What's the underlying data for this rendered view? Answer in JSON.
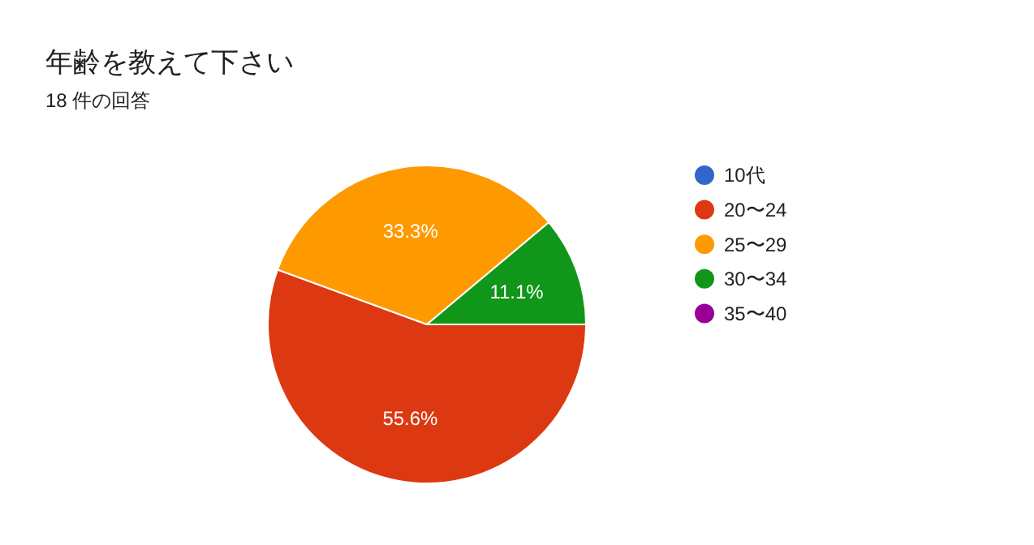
{
  "chart_data": {
    "type": "pie",
    "title": "年齢を教えて下さい",
    "subtitle": "18 件の回答",
    "categories": [
      "10代",
      "20〜24",
      "25〜29",
      "30〜34",
      "35〜40"
    ],
    "values": [
      0,
      55.6,
      33.3,
      11.1,
      0
    ],
    "colors": [
      "#3366cc",
      "#dc3912",
      "#ff9900",
      "#109618",
      "#990099"
    ],
    "value_labels": [
      null,
      "55.6%",
      "33.3%",
      "11.1%",
      null
    ],
    "legend": "right"
  }
}
